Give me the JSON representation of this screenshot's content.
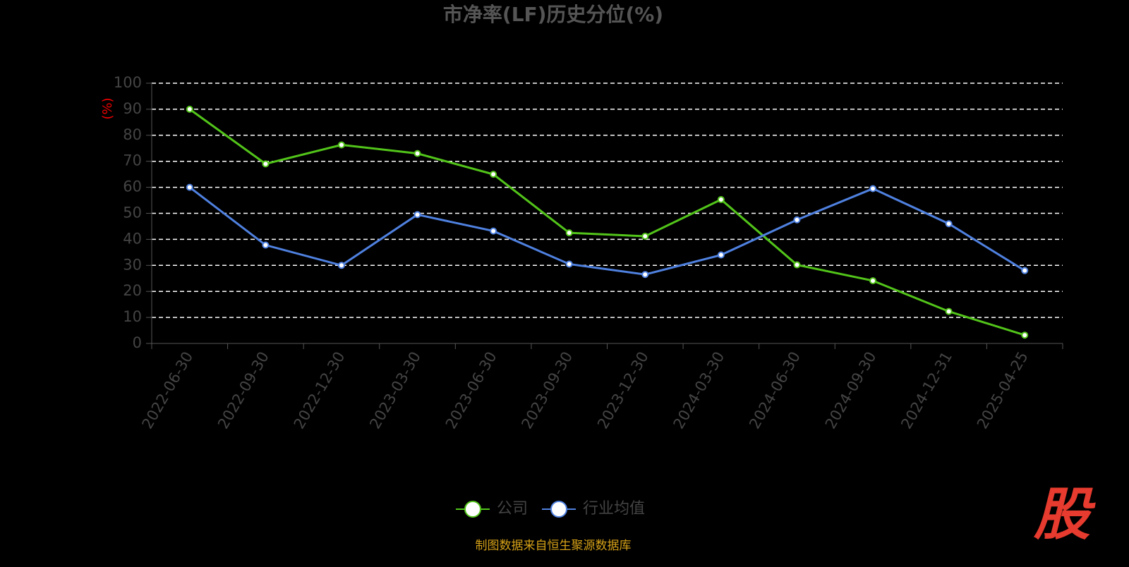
{
  "chart_data": {
    "type": "line",
    "title": "市净率(LF)历史分位(%)",
    "y_label": "(%)",
    "categories": [
      "2022-06-30",
      "2022-09-30",
      "2022-12-30",
      "2023-03-30",
      "2023-06-30",
      "2023-09-30",
      "2023-12-30",
      "2024-03-30",
      "2024-06-30",
      "2024-09-30",
      "2024-12-31",
      "2025-04-25"
    ],
    "series": [
      {
        "name": "公司",
        "color": "#52c41a",
        "values": [
          90,
          69,
          76.3,
          73,
          65,
          42.5,
          41.2,
          55.3,
          30.2,
          24.1,
          12.3,
          3.2
        ]
      },
      {
        "name": "行业均值",
        "color": "#4f81e0",
        "values": [
          60,
          37.8,
          30,
          49.5,
          43.2,
          30.5,
          26.5,
          34,
          47.5,
          59.5,
          46,
          28
        ]
      }
    ],
    "ylim": [
      0,
      100
    ],
    "yticks": [
      0,
      10,
      20,
      30,
      40,
      50,
      60,
      70,
      80,
      90,
      100
    ],
    "grid": true,
    "legend": "bottom",
    "source": "制图数据来自恒生聚源数据库",
    "watermark": "股"
  }
}
